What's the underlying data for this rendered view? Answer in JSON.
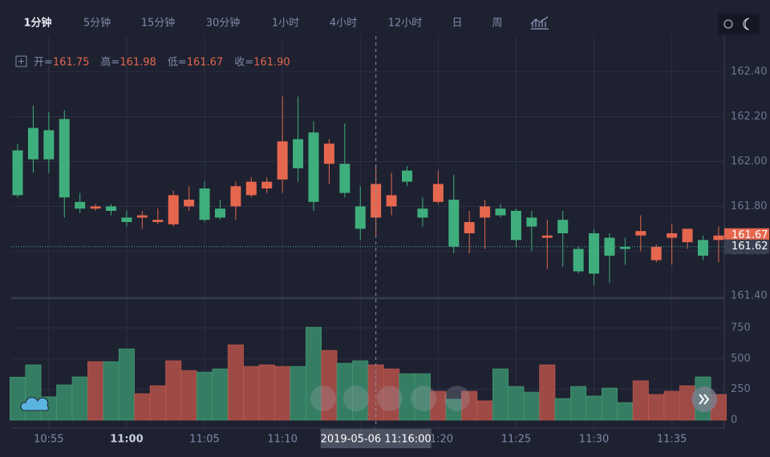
{
  "toolbar": {
    "intervals": [
      "1分钟",
      "5分钟",
      "15分钟",
      "30分钟",
      "1小时",
      "4小时",
      "12小时",
      "日",
      "周"
    ],
    "active": 0
  },
  "info": {
    "items": [
      {
        "label": "开=",
        "value": "161.75"
      },
      {
        "label": "高=",
        "value": "161.98"
      },
      {
        "label": "低=",
        "value": "161.67"
      },
      {
        "label": "收=",
        "value": "161.90"
      }
    ]
  },
  "chart_data": [
    {
      "type": "candlestick",
      "categories": [
        null,
        null,
        "10:55",
        null,
        null,
        null,
        null,
        "11:00",
        null,
        null,
        null,
        null,
        "11:05",
        null,
        null,
        null,
        null,
        "11:10",
        null,
        null,
        null,
        null,
        "11:15",
        null,
        null,
        null,
        null,
        "11:20",
        null,
        null,
        null,
        null,
        "11:25",
        null,
        null,
        null,
        null,
        "11:30",
        null,
        null,
        null,
        null,
        "11:35",
        null,
        null,
        null
      ],
      "open": [
        162.05,
        162.15,
        162.14,
        162.19,
        161.82,
        161.79,
        161.8,
        161.75,
        161.75,
        161.73,
        161.72,
        161.8,
        161.88,
        161.79,
        161.8,
        161.85,
        161.88,
        161.92,
        162.1,
        162.13,
        161.99,
        161.99,
        161.8,
        161.75,
        161.8,
        161.96,
        161.79,
        161.82,
        161.83,
        161.68,
        161.75,
        161.79,
        161.78,
        161.75,
        161.66,
        161.74,
        161.61,
        161.68,
        161.66,
        161.62,
        161.67,
        161.56,
        161.66,
        161.64,
        161.65,
        161.65
      ],
      "high": [
        162.08,
        162.25,
        162.22,
        162.23,
        161.86,
        161.81,
        161.81,
        161.78,
        161.78,
        161.79,
        161.87,
        161.89,
        161.91,
        161.83,
        161.91,
        161.93,
        161.93,
        162.29,
        162.29,
        162.18,
        162.1,
        162.17,
        161.89,
        161.98,
        161.95,
        161.98,
        161.84,
        161.96,
        161.94,
        161.78,
        161.83,
        161.81,
        161.79,
        161.78,
        161.74,
        161.78,
        161.62,
        161.7,
        161.68,
        161.66,
        161.76,
        161.63,
        161.72,
        161.7,
        161.67,
        161.71
      ],
      "low": [
        161.84,
        161.95,
        161.95,
        161.75,
        161.77,
        161.78,
        161.76,
        161.71,
        161.7,
        161.72,
        161.71,
        161.78,
        161.73,
        161.74,
        161.74,
        161.84,
        161.86,
        161.86,
        161.91,
        161.78,
        161.9,
        161.84,
        161.65,
        161.67,
        161.76,
        161.89,
        161.71,
        161.81,
        161.59,
        161.59,
        161.61,
        161.75,
        161.62,
        161.6,
        161.52,
        161.53,
        161.5,
        161.45,
        161.46,
        161.54,
        161.6,
        161.55,
        161.54,
        161.61,
        161.56,
        161.55
      ],
      "close": [
        161.85,
        162.01,
        162.01,
        161.84,
        161.79,
        161.8,
        161.78,
        161.73,
        161.76,
        161.74,
        161.85,
        161.83,
        161.74,
        161.75,
        161.89,
        161.91,
        161.91,
        162.09,
        161.97,
        161.82,
        162.08,
        161.86,
        161.7,
        161.9,
        161.85,
        161.91,
        161.75,
        161.9,
        161.62,
        161.73,
        161.8,
        161.76,
        161.65,
        161.71,
        161.67,
        161.68,
        161.51,
        161.5,
        161.58,
        161.61,
        161.69,
        161.62,
        161.68,
        161.7,
        161.58,
        161.67
      ],
      "up_color": "#e5674e",
      "down_color": "#3fae7d",
      "ylim": [
        161.39,
        162.56
      ],
      "yticks": [
        {
          "value": 161.4,
          "label": "161.40"
        },
        {
          "value": 161.6,
          "label": "161.60"
        },
        {
          "value": 161.8,
          "label": "161.80"
        },
        {
          "value": 162,
          "label": "162.00"
        },
        {
          "value": 162.2,
          "label": "162.20"
        },
        {
          "value": 162.4,
          "label": "162.40"
        }
      ],
      "price_tags": [
        {
          "value": 161.67,
          "label": "161.67",
          "color": "#e5674e"
        },
        {
          "value": 161.62,
          "label": "161.62",
          "color": "#3a3f50"
        }
      ],
      "crosshair": {
        "index": 23,
        "label": "2019-05-06 11:16:00"
      },
      "grid": true
    },
    {
      "type": "bar",
      "values": [
        350,
        450,
        190,
        287,
        352,
        476,
        476,
        580,
        215,
        280,
        483,
        404,
        391,
        417,
        613,
        437,
        450,
        437,
        437,
        756,
        567,
        463,
        483,
        450,
        417,
        378,
        378,
        235,
        170,
        235,
        157,
        417,
        274,
        228,
        450,
        176,
        274,
        196,
        261,
        143,
        320,
        209,
        235,
        280,
        352,
        209
      ],
      "up_color": "#9e4a46",
      "down_color": "#357e63",
      "ylim": [
        0,
        985
      ],
      "yticks": [
        0,
        250,
        500,
        750
      ],
      "grid": true
    }
  ]
}
